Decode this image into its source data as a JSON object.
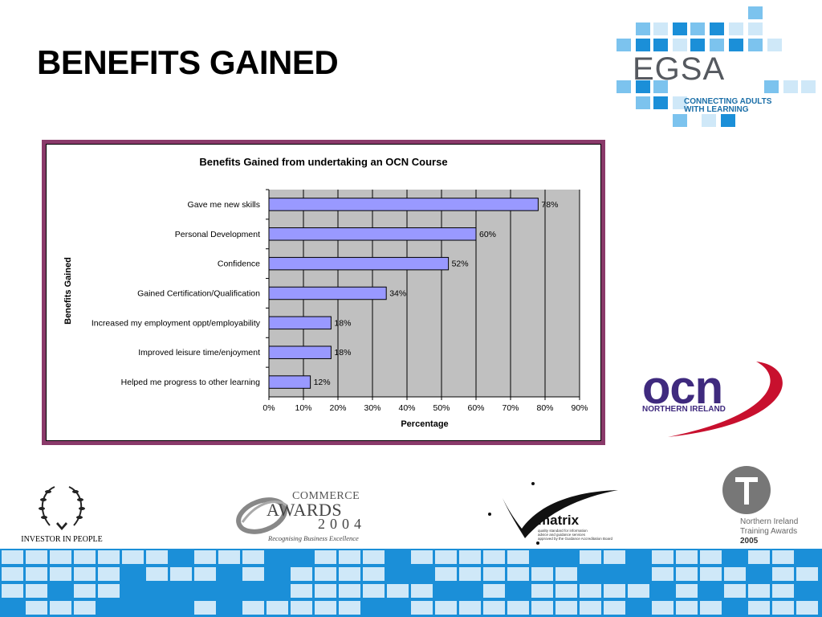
{
  "slide": {
    "title": "BENEFITS GAINED"
  },
  "logos": {
    "egsa": {
      "name": "EGSA",
      "tagline_line1": "CONNECTING ADULTS",
      "tagline_line2": "WITH LEARNING",
      "colors": [
        "#1b8fd8",
        "#7cc3ee",
        "#cfe8f8"
      ]
    },
    "ocn": {
      "name": "ocn",
      "subtitle": "NORTHERN IRELAND",
      "colors": [
        "#3f2a7e",
        "#c8102e"
      ]
    },
    "investor_in_people": {
      "text": "INVESTOR IN PEOPLE"
    },
    "ecommerce_awards": {
      "line1": "COMMERCE",
      "line2": "AWARDS",
      "year": "2004",
      "tagline": "Recognising Business Excellence"
    },
    "matrix": {
      "name": "matrix",
      "small_line1": "quality standard for information",
      "small_line2": "advice and guidance services",
      "small_line3": "approved by the Guidance Accreditation Board"
    },
    "ni_training_awards": {
      "line1": "Northern Ireland",
      "line2": "Training Awards",
      "year": "2005"
    }
  },
  "chart_data": {
    "type": "bar",
    "orientation": "horizontal",
    "title": "Benefits Gained from undertaking an OCN Course",
    "xlabel": "Percentage",
    "ylabel": "Benefits Gained",
    "xlim": [
      0,
      90
    ],
    "x_ticks": [
      "0%",
      "10%",
      "20%",
      "30%",
      "40%",
      "50%",
      "60%",
      "70%",
      "80%",
      "90%"
    ],
    "grid": true,
    "legend": "none",
    "bar_color": "#9999ff",
    "plot_background": "#c0c0c0",
    "categories": [
      "Gave me new  skills",
      "Personal Development",
      "Confidence",
      "Gained Certification/Qualification",
      "Increased my employment oppt/employability",
      "Improved leisure time/enjoyment",
      "Helped me progress to other learning"
    ],
    "values": [
      78,
      60,
      52,
      34,
      18,
      18,
      12
    ],
    "data_labels": [
      "78%",
      "60%",
      "52%",
      "34%",
      "18%",
      "18%",
      "12%"
    ]
  }
}
